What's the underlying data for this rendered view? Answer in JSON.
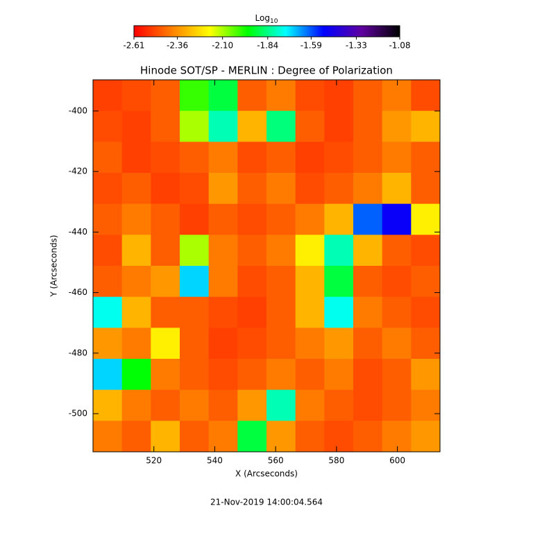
{
  "chart_data": {
    "type": "heatmap",
    "title": "Hinode SOT/SP - MERLIN : Degree of Polarization",
    "x_label": "X (Arcseconds)",
    "y_label": "Y (Arcseconds)",
    "timestamp": "21-Nov-2019 14:00:04.564",
    "colorbar_label": "Log",
    "colorbar_label_sub": "10",
    "colorbar_lim": [
      -2.61,
      -1.08
    ],
    "colorbar_ticks": [
      -2.61,
      -2.36,
      {
        "value": -2.1,
        "label": "-2.10"
      },
      -1.84,
      -1.59,
      -1.33,
      -1.08
    ],
    "colormap": [
      "#ff0000",
      "#ff8000",
      "#ffff00",
      "#00ff00",
      "#00ffff",
      "#0000ff",
      "#6000a0",
      "#000000"
    ],
    "xlim": [
      500,
      614
    ],
    "ylim": [
      -512.6,
      -389.7
    ],
    "xticks": [
      520,
      540,
      560,
      580,
      600
    ],
    "yticks": [
      -400,
      -420,
      -440,
      -460,
      -480,
      -500
    ],
    "z": [
      [
        -2.5,
        -2.48,
        -2.45,
        -2.0,
        -1.9,
        -2.45,
        -2.4,
        -2.48,
        -2.5,
        -2.45,
        -2.4,
        -2.48
      ],
      [
        -2.48,
        -2.5,
        -2.45,
        -2.1,
        -1.8,
        -2.3,
        -1.85,
        -2.45,
        -2.5,
        -2.45,
        -2.35,
        -2.3
      ],
      [
        -2.45,
        -2.5,
        -2.48,
        -2.45,
        -2.4,
        -2.48,
        -2.45,
        -2.5,
        -2.48,
        -2.45,
        -2.4,
        -2.45
      ],
      [
        -2.48,
        -2.45,
        -2.5,
        -2.48,
        -2.35,
        -2.45,
        -2.4,
        -2.48,
        -2.45,
        -2.4,
        -2.3,
        -2.45
      ],
      [
        -2.45,
        -2.4,
        -2.45,
        -2.5,
        -2.45,
        -2.48,
        -2.45,
        -2.4,
        -2.3,
        -1.6,
        -1.5,
        -2.2
      ],
      [
        -2.48,
        -2.3,
        -2.45,
        -2.1,
        -2.4,
        -2.45,
        -2.4,
        -2.2,
        -1.8,
        -2.3,
        -2.45,
        -2.48
      ],
      [
        -2.45,
        -2.4,
        -2.35,
        -1.7,
        -2.4,
        -2.48,
        -2.45,
        -2.3,
        -1.9,
        -2.45,
        -2.48,
        -2.45
      ],
      [
        -1.75,
        -2.3,
        -2.45,
        -2.45,
        -2.48,
        -2.5,
        -2.45,
        -2.3,
        -1.75,
        -2.4,
        -2.45,
        -2.48
      ],
      [
        -2.35,
        -2.4,
        -2.2,
        -2.45,
        -2.5,
        -2.48,
        -2.45,
        -2.4,
        -2.35,
        -2.45,
        -2.4,
        -2.45
      ],
      [
        -1.7,
        -1.95,
        -2.4,
        -2.45,
        -2.48,
        -2.45,
        -2.4,
        -2.45,
        -2.4,
        -2.48,
        -2.45,
        -2.35
      ],
      [
        -2.3,
        -2.4,
        -2.45,
        -2.4,
        -2.45,
        -2.35,
        -1.8,
        -2.4,
        -2.45,
        -2.48,
        -2.45,
        -2.4
      ],
      [
        -2.4,
        -2.45,
        -2.3,
        -2.45,
        -2.4,
        -1.9,
        -2.35,
        -2.45,
        -2.48,
        -2.45,
        -2.4,
        -2.35
      ]
    ]
  }
}
